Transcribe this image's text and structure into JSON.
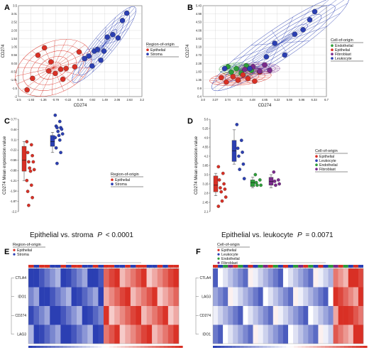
{
  "panels": {
    "A": "A",
    "B": "B",
    "C": "C",
    "D": "D",
    "E": "E",
    "F": "F"
  },
  "captions": {
    "c_text": "Epithelial vs. stroma",
    "c_p": "P",
    "c_val": "< 0.0001",
    "d_text": "Epithelial vs. leukocyte",
    "d_p": "P",
    "d_val": "= 0.0071"
  },
  "colors": {
    "red": "#d93025",
    "blue": "#2b3fb3",
    "green": "#2e9e3a",
    "purple": "#7a2a8c"
  },
  "chart_data": [
    {
      "id": "A",
      "type": "scatter",
      "xlabel": "CD274",
      "ylabel": "CD274",
      "xticks": [
        "-2.5",
        "-1.93",
        "-1.36",
        "-0.79",
        "-0.22",
        "0.35",
        "0.92",
        "1.49",
        "2.06",
        "2.63",
        "3.2"
      ],
      "yticks": [
        "-2",
        "-1.5",
        "-1.01",
        "-0.52",
        "0.03",
        "0.56",
        "1.05",
        "1.54",
        "2.03",
        "2.52",
        "3.01",
        "3.5"
      ],
      "xlim": [
        -2.5,
        3.2
      ],
      "ylim": [
        -2,
        3.5
      ],
      "legend_title": "Region-of-origin",
      "legend_position": "right",
      "grid": true,
      "series": [
        {
          "name": "Epithelial",
          "points": [
            [
              -2.1,
              -1.6
            ],
            [
              -1.85,
              -0.9
            ],
            [
              -1.6,
              0.5
            ],
            [
              -1.3,
              0.95
            ],
            [
              -1.0,
              0.1
            ],
            [
              -1.1,
              -0.45
            ],
            [
              -0.8,
              -0.6
            ],
            [
              -0.55,
              -0.35
            ],
            [
              -0.45,
              -0.95
            ],
            [
              -0.3,
              -0.3
            ],
            [
              0.1,
              -0.2
            ],
            [
              0.3,
              0.7
            ]
          ]
        },
        {
          "name": "Stroma",
          "points": [
            [
              0.55,
              0.3
            ],
            [
              0.75,
              0.45
            ],
            [
              0.9,
              -0.15
            ],
            [
              1.0,
              0.75
            ],
            [
              1.15,
              0.85
            ],
            [
              1.3,
              0.2
            ],
            [
              1.45,
              0.75
            ],
            [
              1.6,
              1.6
            ],
            [
              1.85,
              1.75
            ],
            [
              2.1,
              1.55
            ],
            [
              2.3,
              2.6
            ],
            [
              2.5,
              3.05
            ]
          ]
        }
      ]
    },
    {
      "id": "B",
      "type": "scatter",
      "xlabel": "CD274",
      "ylabel": "CD274",
      "xticks": [
        "3.0",
        "3.37",
        "3.74",
        "4.11",
        "4.48",
        "4.85",
        "5.22",
        "5.59",
        "5.96",
        "6.33",
        "6.7"
      ],
      "yticks": [
        "0.4",
        "0.9",
        "1.36",
        "1.83",
        "2.28",
        "2.73",
        "3.18",
        "3.63",
        "4.08",
        "4.53",
        "4.98",
        "5.43"
      ],
      "xlim": [
        3.0,
        6.7
      ],
      "ylim": [
        0.4,
        5.43
      ],
      "legend_title": "Cell-of-origin",
      "legend_position": "right",
      "grid": true,
      "series": [
        {
          "name": "Endothelial",
          "points": [
            [
              3.75,
              2.05
            ],
            [
              3.85,
              1.75
            ],
            [
              4.0,
              1.95
            ],
            [
              4.15,
              1.7
            ],
            [
              4.3,
              2.1
            ],
            [
              4.45,
              1.85
            ]
          ]
        },
        {
          "name": "Epithelial",
          "points": [
            [
              3.55,
              1.45
            ],
            [
              3.7,
              1.2
            ],
            [
              3.9,
              1.5
            ],
            [
              4.05,
              1.3
            ],
            [
              4.2,
              1.6
            ],
            [
              4.35,
              1.4
            ],
            [
              4.55,
              1.25
            ],
            [
              4.7,
              1.75
            ]
          ]
        },
        {
          "name": "Fibroblast",
          "points": [
            [
              4.25,
              1.9
            ],
            [
              4.5,
              2.05
            ],
            [
              4.7,
              1.8
            ],
            [
              4.85,
              2.15
            ],
            [
              5.0,
              1.85
            ]
          ]
        },
        {
          "name": "Leukocyte",
          "points": [
            [
              3.65,
              1.95
            ],
            [
              4.4,
              1.95
            ],
            [
              4.9,
              2.6
            ],
            [
              5.15,
              3.35
            ],
            [
              5.45,
              2.7
            ],
            [
              5.75,
              3.85
            ],
            [
              6.0,
              4.1
            ],
            [
              6.2,
              4.65
            ],
            [
              6.35,
              5.1
            ]
          ]
        }
      ]
    },
    {
      "id": "C",
      "type": "scatter",
      "ylabel": "CD274 Mean expression value",
      "yticks": [
        "-2.2",
        "-1.87",
        "-1.54",
        "-1.21",
        "-0.88",
        "-0.55",
        "-0.22",
        "0.11",
        "0.44",
        "0.77"
      ],
      "ylim": [
        -2.2,
        0.77
      ],
      "legend_title": "Region-of-origin",
      "legend_position": "right",
      "series": [
        {
          "name": "Epithelial",
          "values": [
            0.05,
            -0.05,
            -0.3,
            -0.4,
            -0.6,
            -0.6,
            -0.8,
            -0.85,
            -0.9,
            -1.2,
            -1.35,
            -1.55,
            -1.75,
            -2.0
          ],
          "box": {
            "q1": -0.9,
            "median": -0.55,
            "q3": -0.1,
            "min": -1.2,
            "max": 0.05
          }
        },
        {
          "name": "Stroma",
          "values": [
            0.9,
            0.7,
            0.55,
            0.5,
            0.5,
            0.45,
            0.38,
            0.3,
            0.25,
            0.18,
            0.1,
            -0.15,
            -0.3,
            -0.65
          ],
          "box": {
            "q1": -0.1,
            "median": 0.05,
            "q3": 0.25,
            "min": -0.3,
            "max": 0.35
          }
        }
      ]
    },
    {
      "id": "D",
      "type": "scatter",
      "ylabel": "CD274 Mean expression value",
      "yticks": [
        "2.1",
        "2.45",
        "2.8",
        "3.15",
        "3.5",
        "3.85",
        "4.2",
        "4.55",
        "4.9",
        "5.25",
        "5.6"
      ],
      "ylim": [
        2.1,
        5.6
      ],
      "legend_title": "Cell-of-origin",
      "legend_position": "right",
      "series": [
        {
          "name": "Epithelial",
          "values": [
            3.8,
            3.55,
            3.3,
            3.15,
            3.0,
            2.95,
            2.85,
            2.65,
            2.5,
            2.3
          ],
          "box": {
            "q1": 2.85,
            "median": 3.1,
            "q3": 3.45,
            "min": 2.7,
            "max": 3.55
          }
        },
        {
          "name": "Leukocyte",
          "values": [
            5.4,
            4.8,
            4.5,
            4.35,
            4.2,
            3.9,
            3.7,
            3.35
          ],
          "box": {
            "q1": 4.0,
            "median": 4.4,
            "q3": 4.8,
            "min": 3.9,
            "max": 5.2
          }
        },
        {
          "name": "Endothelial",
          "values": [
            3.5,
            3.3,
            3.2,
            3.1,
            3.1
          ],
          "box": {
            "q1": 3.05,
            "median": 3.2,
            "q3": 3.3,
            "min": 3.0,
            "max": 3.4
          }
        },
        {
          "name": "Fibroblast",
          "values": [
            3.6,
            3.3,
            3.25,
            3.15,
            3.1
          ],
          "box": {
            "q1": 3.1,
            "median": 3.25,
            "q3": 3.4,
            "min": 3.0,
            "max": 3.5
          }
        }
      ]
    },
    {
      "id": "E",
      "type": "heatmap",
      "legend_title": "Region-of-origin",
      "legend_position": "top-left",
      "legend_entries": [
        "Epithelial",
        "Stroma"
      ],
      "rows": [
        "CTLA4",
        "IDO1",
        "CD274",
        "LAG3"
      ],
      "columns": 28
    },
    {
      "id": "F",
      "type": "heatmap",
      "legend_title": "Cell-of-origin",
      "legend_position": "top-left",
      "legend_entries": [
        "Epithelial",
        "Leukocyte",
        "Endothelial",
        "Fibroblast"
      ],
      "rows": [
        "CTLA4",
        "LAG3",
        "CD274",
        "IDO1"
      ],
      "columns": 30
    }
  ]
}
